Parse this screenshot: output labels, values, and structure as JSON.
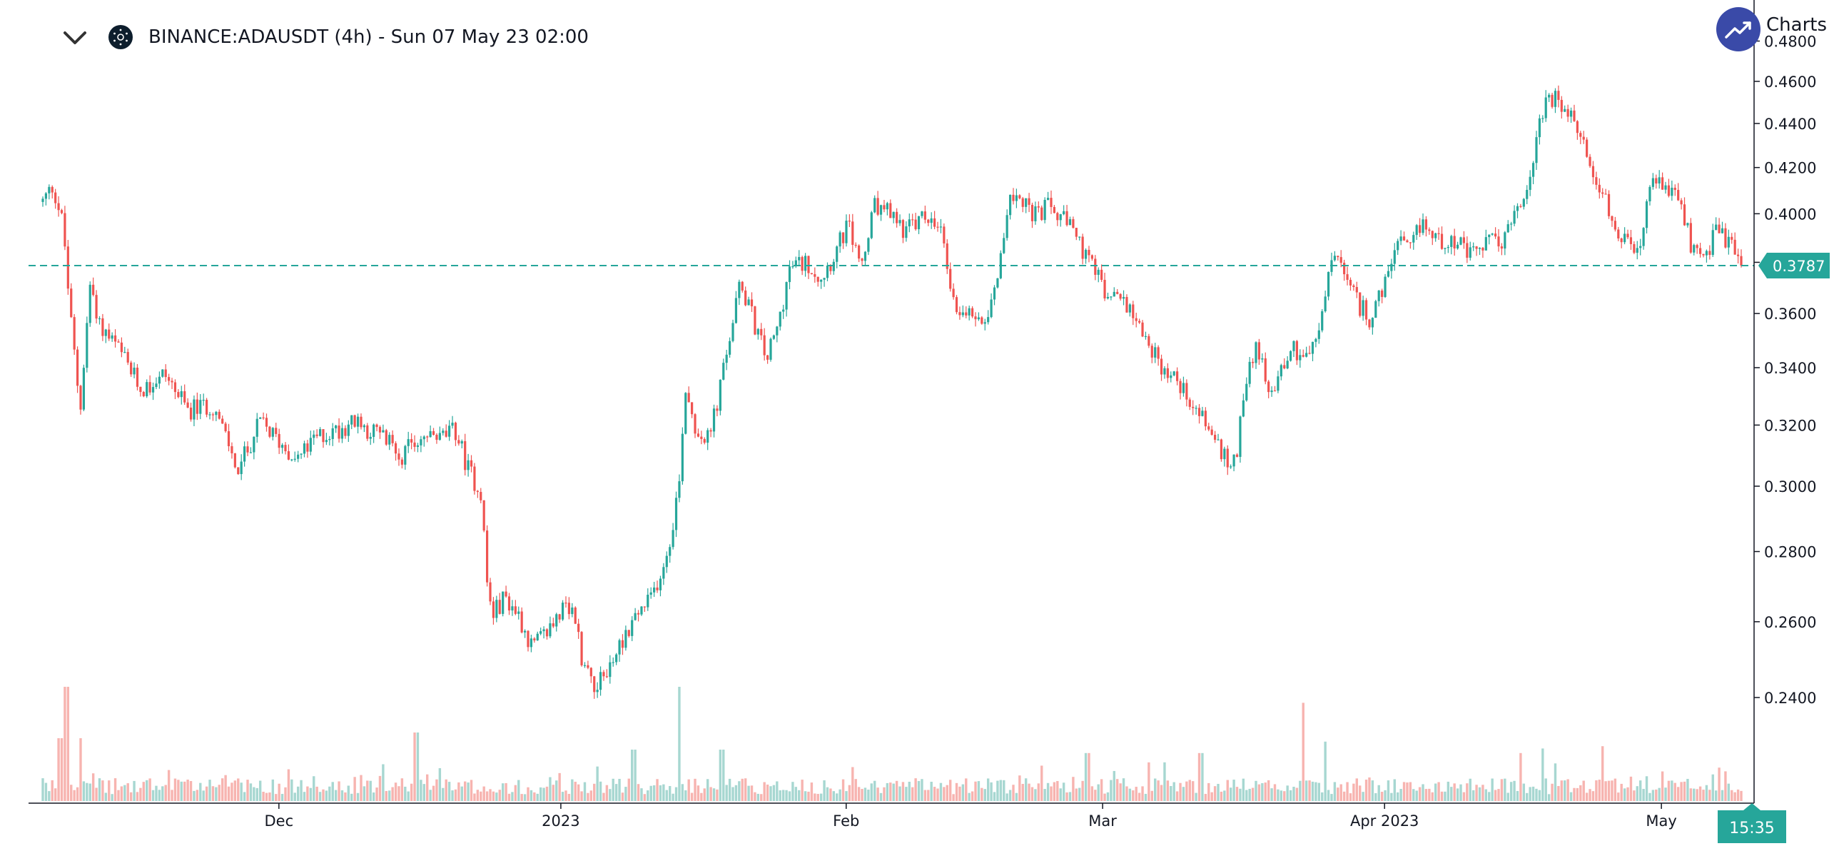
{
  "header": {
    "symbol_title": "BINANCE:ADAUSDT (4h) - Sun 07 May 23 02:00",
    "collapse_icon": "chevron-down-icon",
    "symbol_icon": "cardano-icon"
  },
  "branding": {
    "logo_icon": "trending-up-icon",
    "text": "Charts I"
  },
  "colors": {
    "up": "#26a69a",
    "down": "#ef5350",
    "up_volume": "#a7d7d1",
    "down_volume": "#f7b4b0",
    "axis": "#131722",
    "price_line": "#26a69a"
  },
  "price_badge": {
    "value": "0.3787"
  },
  "time_badge": {
    "value": "15:35"
  },
  "chart_data": {
    "type": "candlestick",
    "title": "BINANCE:ADAUSDT (4h)",
    "y_scale": "log",
    "ylim": [
      0.232,
      0.482
    ],
    "grid": false,
    "current_price": 0.3787,
    "y_ticks": [
      "0.4800",
      "0.4600",
      "0.4400",
      "0.4200",
      "0.4000",
      "0.3800",
      "0.3600",
      "0.3400",
      "0.3200",
      "0.3000",
      "0.2800",
      "0.2600",
      "0.2400"
    ],
    "x_ticks": [
      {
        "label": "Dec",
        "t": 0.139
      },
      {
        "label": "2023",
        "t": 0.305
      },
      {
        "label": "Feb",
        "t": 0.473
      },
      {
        "label": "Mar",
        "t": 0.624
      },
      {
        "label": "Apr 2023",
        "t": 0.79
      },
      {
        "label": "May",
        "t": 0.953
      }
    ],
    "price_path": [
      [
        0.0,
        0.405
      ],
      [
        0.006,
        0.412
      ],
      [
        0.012,
        0.395
      ],
      [
        0.016,
        0.36
      ],
      [
        0.022,
        0.325
      ],
      [
        0.028,
        0.372
      ],
      [
        0.034,
        0.355
      ],
      [
        0.045,
        0.346
      ],
      [
        0.058,
        0.332
      ],
      [
        0.072,
        0.338
      ],
      [
        0.085,
        0.325
      ],
      [
        0.1,
        0.327
      ],
      [
        0.115,
        0.305
      ],
      [
        0.128,
        0.321
      ],
      [
        0.14,
        0.314
      ],
      [
        0.15,
        0.309
      ],
      [
        0.162,
        0.316
      ],
      [
        0.172,
        0.318
      ],
      [
        0.182,
        0.321
      ],
      [
        0.198,
        0.317
      ],
      [
        0.212,
        0.31
      ],
      [
        0.222,
        0.316
      ],
      [
        0.235,
        0.316
      ],
      [
        0.243,
        0.318
      ],
      [
        0.25,
        0.306
      ],
      [
        0.258,
        0.298
      ],
      [
        0.262,
        0.268
      ],
      [
        0.265,
        0.262
      ],
      [
        0.272,
        0.267
      ],
      [
        0.28,
        0.262
      ],
      [
        0.288,
        0.253
      ],
      [
        0.295,
        0.256
      ],
      [
        0.305,
        0.263
      ],
      [
        0.313,
        0.262
      ],
      [
        0.318,
        0.249
      ],
      [
        0.326,
        0.243
      ],
      [
        0.333,
        0.247
      ],
      [
        0.342,
        0.256
      ],
      [
        0.35,
        0.262
      ],
      [
        0.358,
        0.266
      ],
      [
        0.368,
        0.28
      ],
      [
        0.375,
        0.302
      ],
      [
        0.378,
        0.334
      ],
      [
        0.385,
        0.318
      ],
      [
        0.392,
        0.315
      ],
      [
        0.398,
        0.33
      ],
      [
        0.405,
        0.353
      ],
      [
        0.411,
        0.372
      ],
      [
        0.418,
        0.358
      ],
      [
        0.426,
        0.343
      ],
      [
        0.432,
        0.353
      ],
      [
        0.44,
        0.378
      ],
      [
        0.45,
        0.38
      ],
      [
        0.458,
        0.374
      ],
      [
        0.466,
        0.383
      ],
      [
        0.474,
        0.395
      ],
      [
        0.482,
        0.378
      ],
      [
        0.49,
        0.403
      ],
      [
        0.5,
        0.399
      ],
      [
        0.508,
        0.393
      ],
      [
        0.52,
        0.399
      ],
      [
        0.53,
        0.39
      ],
      [
        0.536,
        0.364
      ],
      [
        0.545,
        0.36
      ],
      [
        0.555,
        0.359
      ],
      [
        0.562,
        0.375
      ],
      [
        0.568,
        0.403
      ],
      [
        0.575,
        0.41
      ],
      [
        0.583,
        0.398
      ],
      [
        0.592,
        0.403
      ],
      [
        0.6,
        0.398
      ],
      [
        0.608,
        0.391
      ],
      [
        0.615,
        0.38
      ],
      [
        0.622,
        0.374
      ],
      [
        0.627,
        0.364
      ],
      [
        0.635,
        0.367
      ],
      [
        0.643,
        0.36
      ],
      [
        0.652,
        0.347
      ],
      [
        0.658,
        0.341
      ],
      [
        0.665,
        0.337
      ],
      [
        0.672,
        0.332
      ],
      [
        0.68,
        0.325
      ],
      [
        0.688,
        0.318
      ],
      [
        0.695,
        0.309
      ],
      [
        0.702,
        0.307
      ],
      [
        0.708,
        0.336
      ],
      [
        0.715,
        0.349
      ],
      [
        0.722,
        0.329
      ],
      [
        0.73,
        0.342
      ],
      [
        0.736,
        0.347
      ],
      [
        0.742,
        0.345
      ],
      [
        0.75,
        0.348
      ],
      [
        0.755,
        0.367
      ],
      [
        0.76,
        0.385
      ],
      [
        0.768,
        0.371
      ],
      [
        0.775,
        0.363
      ],
      [
        0.782,
        0.358
      ],
      [
        0.79,
        0.37
      ],
      [
        0.797,
        0.388
      ],
      [
        0.805,
        0.384
      ],
      [
        0.812,
        0.397
      ],
      [
        0.82,
        0.389
      ],
      [
        0.83,
        0.39
      ],
      [
        0.84,
        0.382
      ],
      [
        0.85,
        0.388
      ],
      [
        0.86,
        0.389
      ],
      [
        0.868,
        0.401
      ],
      [
        0.875,
        0.412
      ],
      [
        0.882,
        0.446
      ],
      [
        0.89,
        0.451
      ],
      [
        0.898,
        0.444
      ],
      [
        0.905,
        0.434
      ],
      [
        0.912,
        0.421
      ],
      [
        0.918,
        0.41
      ],
      [
        0.925,
        0.393
      ],
      [
        0.932,
        0.387
      ],
      [
        0.94,
        0.382
      ],
      [
        0.947,
        0.414
      ],
      [
        0.955,
        0.411
      ],
      [
        0.962,
        0.408
      ],
      [
        0.97,
        0.388
      ],
      [
        0.978,
        0.382
      ],
      [
        0.985,
        0.392
      ],
      [
        0.993,
        0.388
      ],
      [
        1.0,
        0.3787
      ]
    ],
    "volume_spikes": [
      [
        0.01,
        0.55
      ],
      [
        0.014,
        1.0
      ],
      [
        0.022,
        0.55
      ],
      [
        0.22,
        0.6
      ],
      [
        0.348,
        0.45
      ],
      [
        0.375,
        1.0
      ],
      [
        0.4,
        0.45
      ],
      [
        0.615,
        0.42
      ],
      [
        0.682,
        0.42
      ],
      [
        0.742,
        0.86
      ],
      [
        0.755,
        0.52
      ],
      [
        0.87,
        0.42
      ],
      [
        0.883,
        0.46
      ],
      [
        0.918,
        0.48
      ]
    ]
  }
}
